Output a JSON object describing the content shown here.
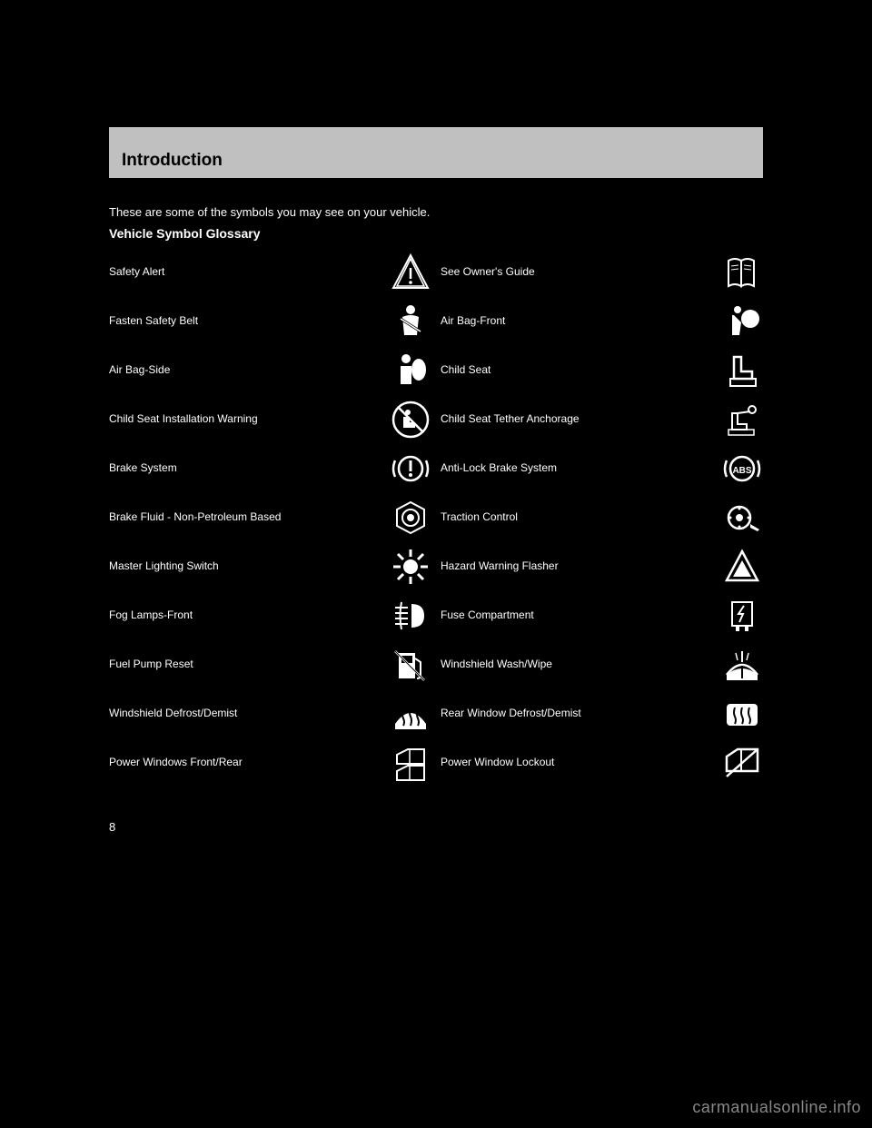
{
  "header": {
    "title": "Introduction"
  },
  "intro_text": "These are some of the symbols you may see on your vehicle.",
  "subheader": "Vehicle Symbol Glossary",
  "symbols": [
    {
      "label": "Safety Alert",
      "icon": "warning-triangle-icon"
    },
    {
      "label": "See Owner's Guide",
      "icon": "book-icon"
    },
    {
      "label": "Fasten Safety Belt",
      "icon": "seatbelt-icon"
    },
    {
      "label": "Air Bag-Front",
      "icon": "airbag-front-icon"
    },
    {
      "label": "Air Bag-Side",
      "icon": "airbag-side-icon"
    },
    {
      "label": "Child Seat",
      "icon": "child-seat-icon"
    },
    {
      "label": "Child Seat Installation Warning",
      "icon": "child-seat-warning-icon"
    },
    {
      "label": "Child Seat Tether Anchorage",
      "icon": "tether-anchor-icon"
    },
    {
      "label": "Brake System",
      "icon": "brake-icon"
    },
    {
      "label": "Anti-Lock Brake System",
      "icon": "abs-icon"
    },
    {
      "label": "Brake Fluid - Non-Petroleum Based",
      "icon": "brake-fluid-icon"
    },
    {
      "label": "Traction Control",
      "icon": "traction-icon"
    },
    {
      "label": "Master Lighting Switch",
      "icon": "lighting-icon"
    },
    {
      "label": "Hazard Warning Flasher",
      "icon": "hazard-icon"
    },
    {
      "label": "Fog Lamps-Front",
      "icon": "fog-lamp-icon"
    },
    {
      "label": "Fuse Compartment",
      "icon": "fuse-icon"
    },
    {
      "label": "Fuel Pump Reset",
      "icon": "fuel-reset-icon"
    },
    {
      "label": "Windshield Wash/Wipe",
      "icon": "wiper-icon"
    },
    {
      "label": "Windshield Defrost/Demist",
      "icon": "defrost-front-icon"
    },
    {
      "label": "Rear Window Defrost/Demist",
      "icon": "defrost-rear-icon"
    },
    {
      "label": "Power Windows Front/Rear",
      "icon": "power-window-icon"
    },
    {
      "label": "Power Window Lockout",
      "icon": "window-lockout-icon"
    }
  ],
  "page_number": "8",
  "watermark": "carmanualsonline.info",
  "colors": {
    "page_bg": "#000000",
    "header_bg": "#c0c0c0",
    "text": "#ffffff",
    "header_text": "#000000"
  }
}
